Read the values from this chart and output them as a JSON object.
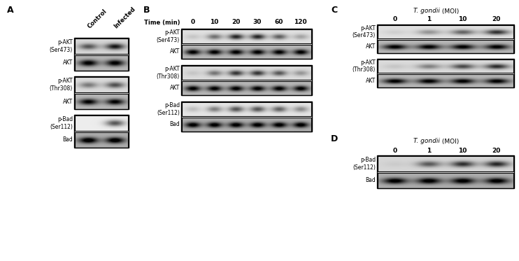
{
  "fig_width": 7.42,
  "fig_height": 3.73,
  "bg_color": "#ffffff",
  "panel_A": {
    "label": "A",
    "col_labels": [
      "Control",
      "Infected"
    ],
    "groups": [
      {
        "rows": [
          {
            "label": "p-AKT\n(Ser473)",
            "bg_gray": 0.84,
            "bands": [
              0.6,
              0.9
            ]
          },
          {
            "label": "AKT",
            "bg_gray": 0.72,
            "bands": [
              0.92,
              0.92
            ]
          }
        ]
      },
      {
        "rows": [
          {
            "label": "p-AKT\n(Thr308)",
            "bg_gray": 0.86,
            "bands": [
              0.45,
              0.65
            ]
          },
          {
            "label": "AKT",
            "bg_gray": 0.72,
            "bands": [
              0.88,
              0.88
            ]
          }
        ]
      },
      {
        "rows": [
          {
            "label": "p-Bad\n(Ser112)",
            "bg_gray": 0.93,
            "bands": [
              0.02,
              0.7
            ]
          },
          {
            "label": "Bad",
            "bg_gray": 0.68,
            "bands": [
              0.95,
              0.95
            ]
          }
        ]
      }
    ]
  },
  "panel_B": {
    "label": "B",
    "time_labels": [
      "0",
      "10",
      "20",
      "30",
      "60",
      "120"
    ],
    "groups": [
      {
        "rows": [
          {
            "label": "p-AKT\n(Ser473)",
            "bg_gray": 0.88,
            "bands": [
              0.12,
              0.52,
              0.88,
              0.88,
              0.6,
              0.28
            ]
          },
          {
            "label": "AKT",
            "bg_gray": 0.72,
            "bands": [
              0.9,
              0.9,
              0.9,
              0.9,
              0.9,
              0.9
            ]
          }
        ]
      },
      {
        "rows": [
          {
            "label": "p-AKT\n(Thr308)",
            "bg_gray": 0.86,
            "bands": [
              0.1,
              0.48,
              0.78,
              0.78,
              0.62,
              0.32
            ]
          },
          {
            "label": "AKT",
            "bg_gray": 0.72,
            "bands": [
              0.9,
              0.9,
              0.9,
              0.9,
              0.9,
              0.9
            ]
          }
        ]
      },
      {
        "rows": [
          {
            "label": "p-Bad\n(Ser112)",
            "bg_gray": 0.9,
            "bands": [
              0.18,
              0.48,
              0.68,
              0.68,
              0.62,
              0.42
            ]
          },
          {
            "label": "Bad",
            "bg_gray": 0.68,
            "bands": [
              0.9,
              0.9,
              0.9,
              0.9,
              0.9,
              0.9
            ]
          }
        ]
      }
    ]
  },
  "panel_C": {
    "label": "C",
    "col_labels": [
      "0",
      "1",
      "10",
      "20"
    ],
    "groups": [
      {
        "rows": [
          {
            "label": "p-AKT\n(Ser473)",
            "bg_gray": 0.88,
            "bands": [
              0.08,
              0.35,
              0.58,
              0.82
            ]
          },
          {
            "label": "AKT",
            "bg_gray": 0.72,
            "bands": [
              0.9,
              0.9,
              0.9,
              0.9
            ]
          }
        ]
      },
      {
        "rows": [
          {
            "label": "p-AKT\n(Thr308)",
            "bg_gray": 0.86,
            "bands": [
              0.1,
              0.42,
              0.68,
              0.82
            ]
          },
          {
            "label": "AKT",
            "bg_gray": 0.72,
            "bands": [
              0.9,
              0.9,
              0.9,
              0.9
            ]
          }
        ]
      }
    ]
  },
  "panel_D": {
    "label": "D",
    "col_labels": [
      "0",
      "1",
      "10",
      "20"
    ],
    "groups": [
      {
        "rows": [
          {
            "label": "p-Bad\n(Ser112)",
            "bg_gray": 0.84,
            "bands": [
              0.05,
              0.58,
              0.78,
              0.82
            ]
          },
          {
            "label": "Bad",
            "bg_gray": 0.68,
            "bands": [
              0.9,
              0.9,
              0.9,
              0.9
            ]
          }
        ]
      }
    ]
  }
}
